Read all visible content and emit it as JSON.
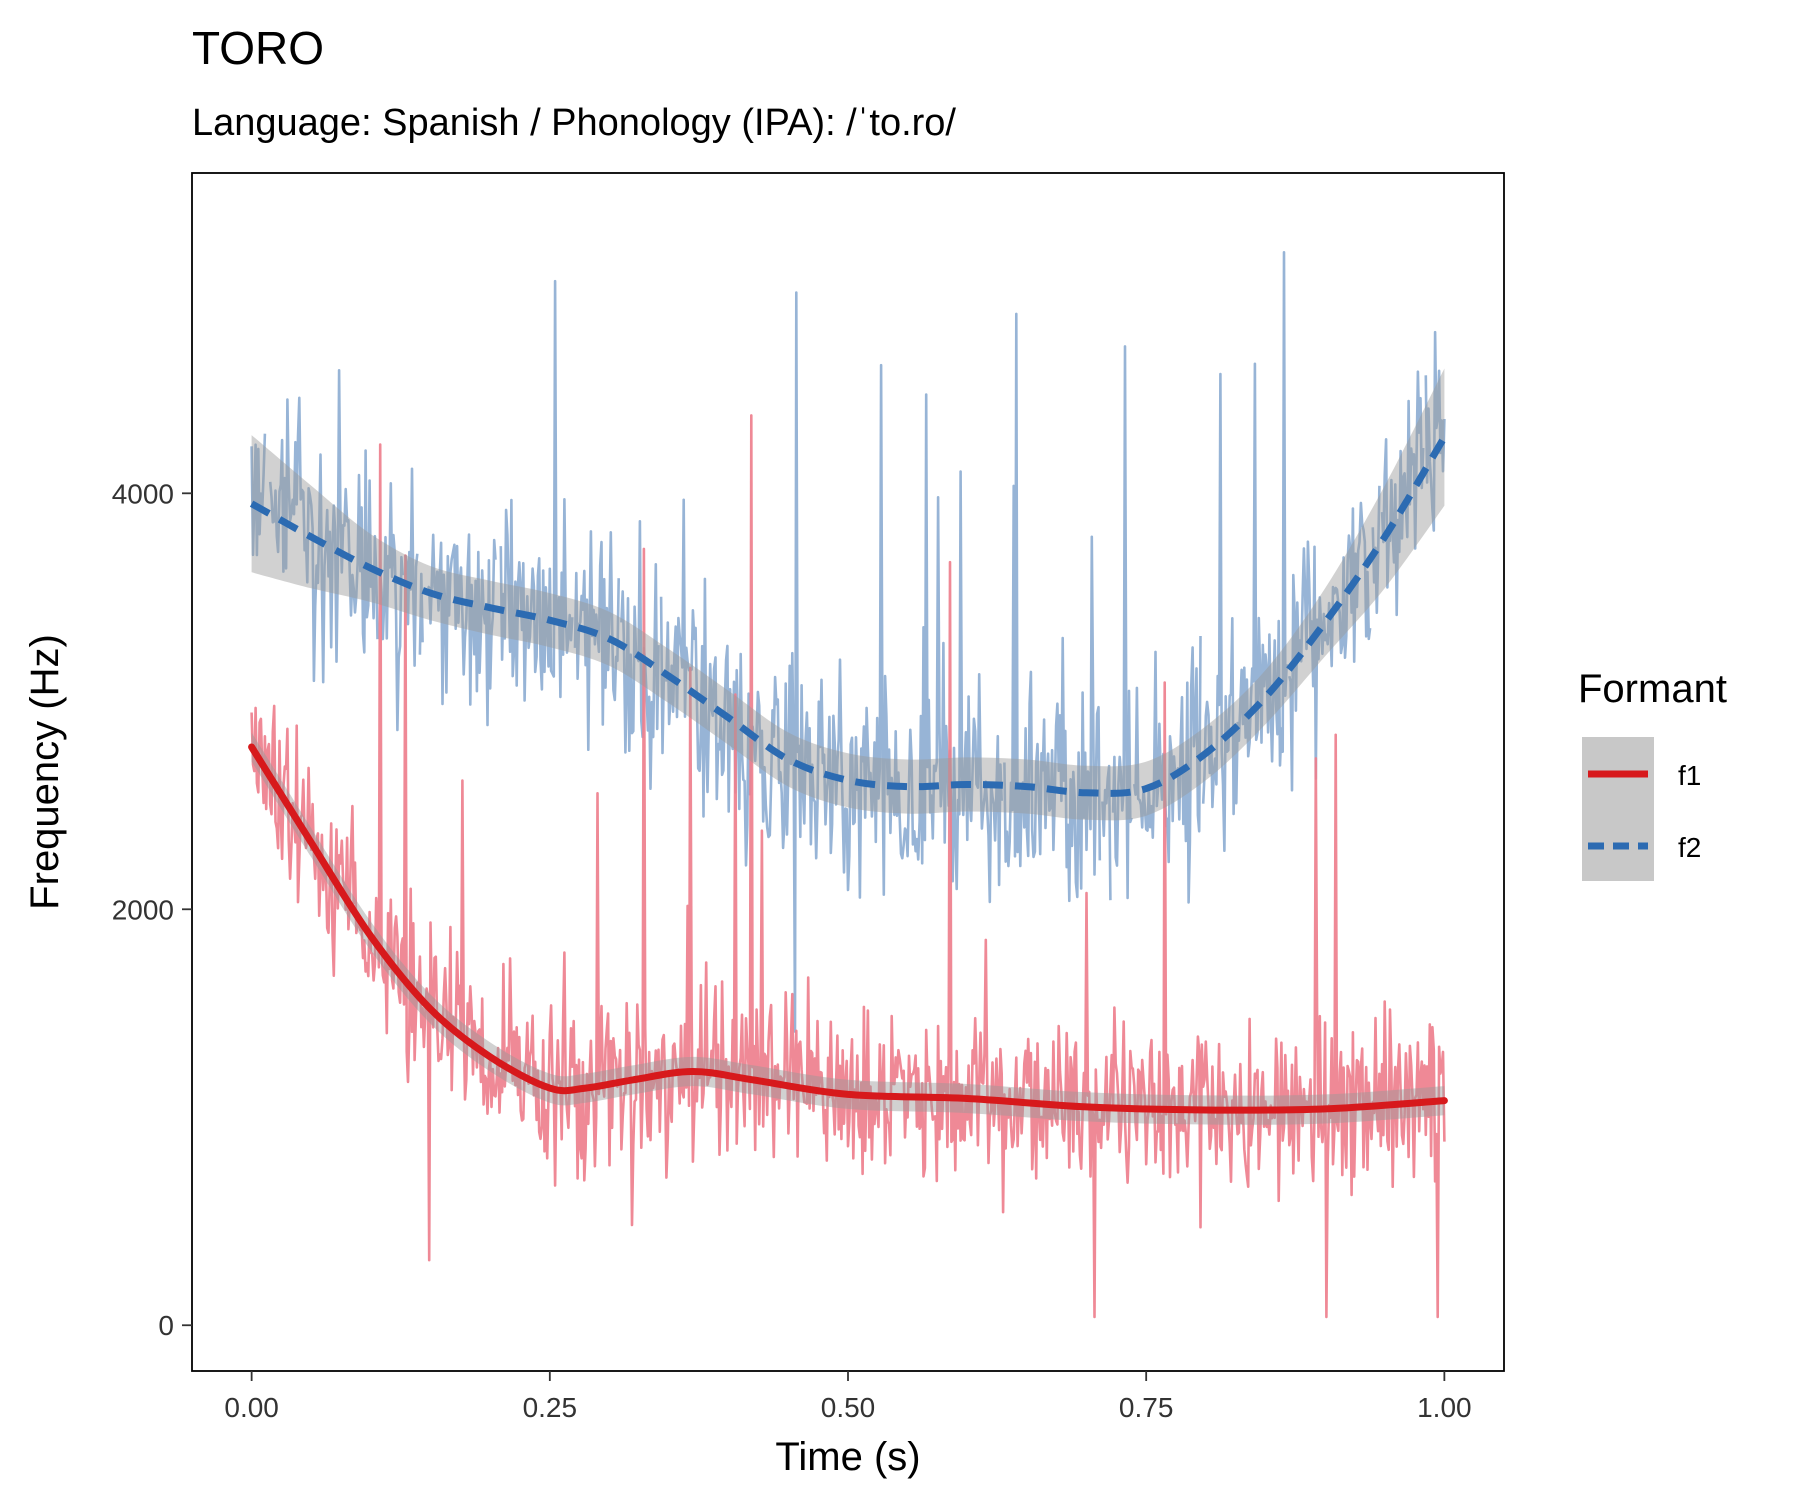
{
  "chart_data": {
    "type": "line",
    "title": "TORO",
    "subtitle": "Language: Spanish / Phonology (IPA): /ˈto.ro/",
    "xlabel": "Time (s)",
    "ylabel": "Frequency (Hz)",
    "xlim": [
      -0.05,
      1.05
    ],
    "ylim": [
      -220,
      5540
    ],
    "x_ticks": [
      0.0,
      0.25,
      0.5,
      0.75,
      1.0
    ],
    "x_tick_labels": [
      "0.00",
      "0.25",
      "0.50",
      "0.75",
      "1.00"
    ],
    "y_ticks": [
      0,
      2000,
      4000
    ],
    "y_tick_labels": [
      "0",
      "2000",
      "4000"
    ],
    "grid": false,
    "legend": {
      "title": "Formant",
      "position": "right"
    },
    "series": [
      {
        "name": "f1",
        "raw_color": "#EE7F8D",
        "smooth_color": "#D7191C",
        "line_style": "solid",
        "raw_noise_sd": 330,
        "raw_spike_max": 4900,
        "smooth": {
          "x": [
            0.0,
            0.05,
            0.1,
            0.15,
            0.2,
            0.25,
            0.28,
            0.32,
            0.37,
            0.42,
            0.5,
            0.6,
            0.7,
            0.8,
            0.9,
            1.0
          ],
          "y": [
            2780,
            2320,
            1870,
            1520,
            1290,
            1140,
            1140,
            1180,
            1220,
            1180,
            1110,
            1090,
            1050,
            1035,
            1040,
            1080
          ]
        },
        "ci_halfwidth": 70
      },
      {
        "name": "f2",
        "raw_color": "#8EAED3",
        "smooth_color": "#2C6BB2",
        "line_style": "dashed",
        "raw_noise_sd": 420,
        "raw_spike_max": 5400,
        "smooth": {
          "x": [
            0.0,
            0.05,
            0.1,
            0.15,
            0.2,
            0.25,
            0.3,
            0.35,
            0.4,
            0.45,
            0.5,
            0.55,
            0.6,
            0.65,
            0.7,
            0.75,
            0.8,
            0.85,
            0.9,
            0.95,
            1.0
          ],
          "y": [
            3950,
            3790,
            3640,
            3520,
            3450,
            3390,
            3300,
            3120,
            2920,
            2720,
            2620,
            2590,
            2600,
            2590,
            2560,
            2580,
            2750,
            3020,
            3380,
            3790,
            4270
          ]
        },
        "ci_halfwidth": 130,
        "ci_halfwidth_edge": 330
      }
    ]
  }
}
